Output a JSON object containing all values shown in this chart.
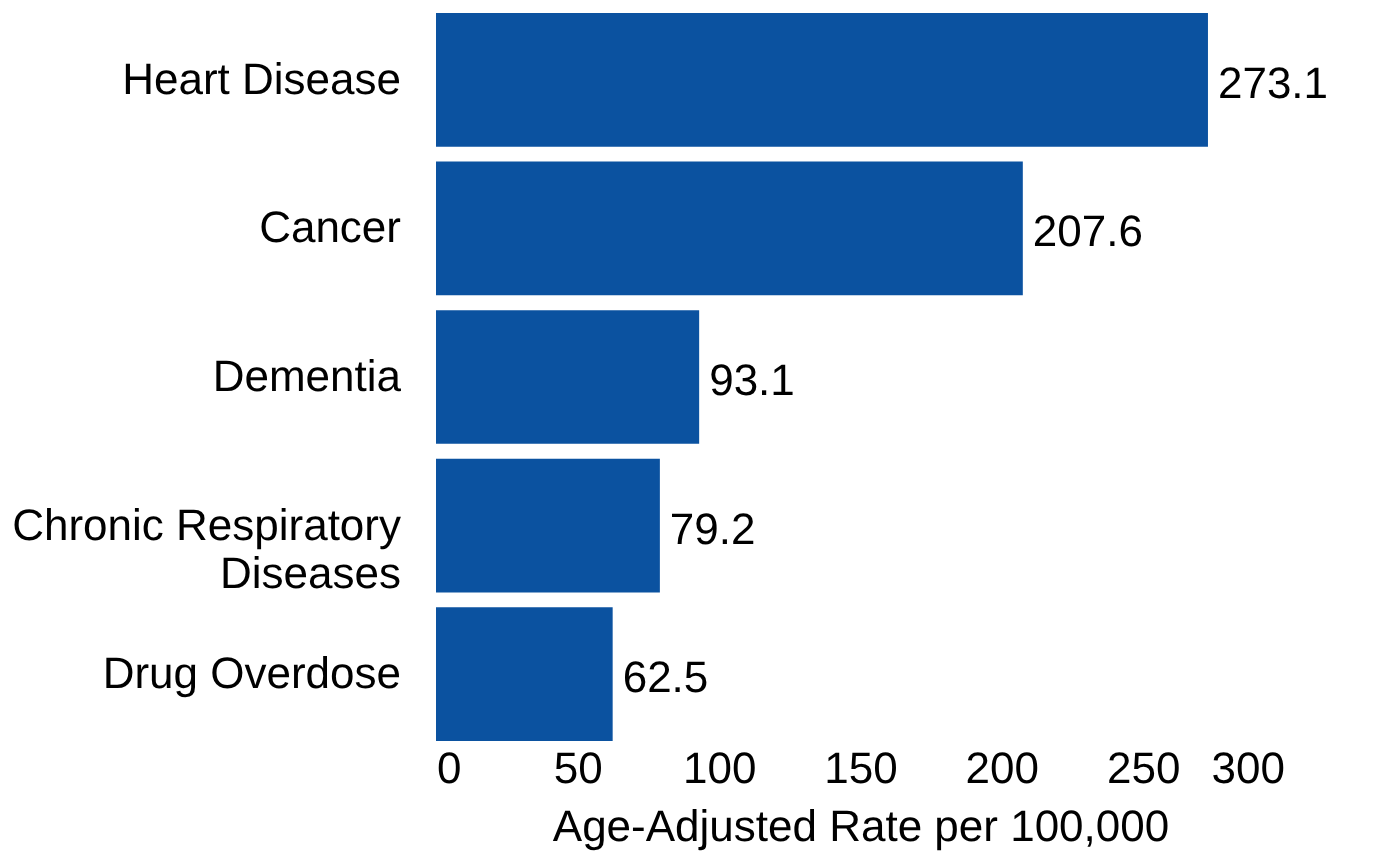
{
  "chart_data": {
    "type": "bar",
    "orientation": "horizontal",
    "categories": [
      "Heart Disease",
      "Cancer",
      "Dementia",
      "Chronic Respiratory Diseases",
      "Drug Overdose"
    ],
    "values": [
      273.1,
      207.6,
      93.1,
      79.2,
      62.5
    ],
    "color": "#0b52a0",
    "data_labels": true,
    "xlim": [
      0,
      300
    ],
    "xticks": [
      0,
      50,
      100,
      150,
      200,
      250,
      300
    ],
    "xlabel": "Age-Adjusted Rate per 100,000",
    "grid": false
  }
}
